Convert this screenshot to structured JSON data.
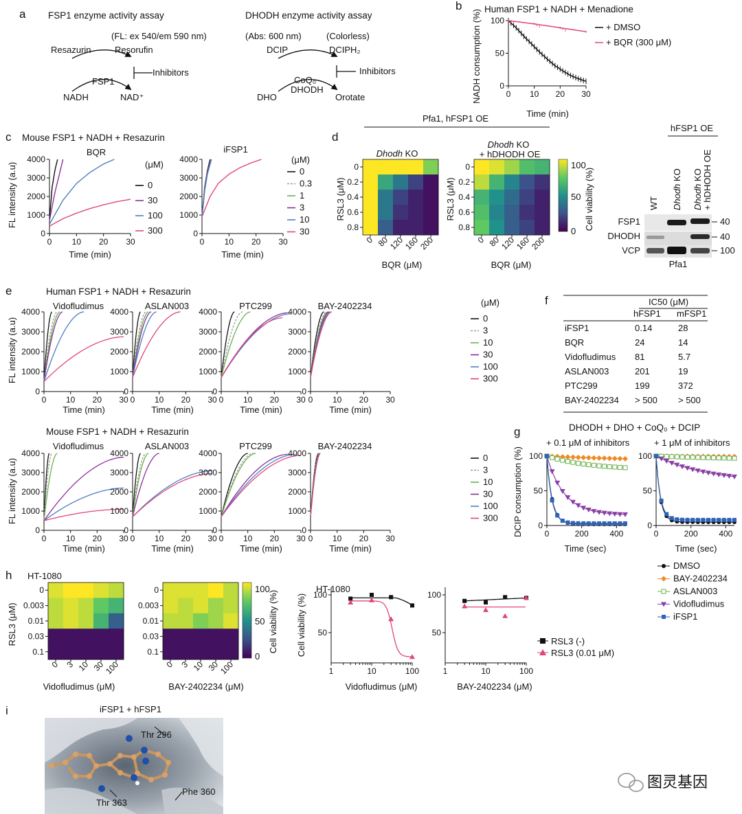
{
  "panels": {
    "a": {
      "letter": "a",
      "fsp1_title": "FSP1 enzyme activity assay",
      "fl": "(FL: ex 540/em 590 nm)",
      "resazurin": "Resazurin",
      "resorufin": "Resorufin",
      "fsp1": "FSP1",
      "inhibitors": "Inhibitors",
      "nadh": "NADH",
      "nad": "NAD⁺",
      "dhodh_title": "DHODH enzyme activity assay",
      "abs": "(Abs: 600 nm)",
      "colorless": "(Colorless)",
      "dcip": "DCIP",
      "dciph2": "DCIPH₂",
      "coq0": "CoQ₀",
      "dhodh": "DHODH",
      "dho": "DHO",
      "orotate": "Orotate"
    },
    "b": {
      "letter": "b",
      "title": "Human FSP1 + NADH + Menadione",
      "ylabel": "NADH consumption (%)",
      "xlabel": "Time (min)",
      "xticks": [
        "0",
        "10",
        "20",
        "30"
      ],
      "yticks": [
        "0",
        "50",
        "100"
      ],
      "legend": [
        "+ DMSO",
        "+ BQR (300 μM)"
      ]
    },
    "c": {
      "letter": "c",
      "title": "Mouse FSP1 + NADH + Resazurin",
      "sub1": "BQR",
      "sub2": "iFSP1",
      "ylabel": "FL intensity (a.u)",
      "xlabel": "Time (min)",
      "unit": "(μM)",
      "xticks": [
        "0",
        "10",
        "20",
        "30"
      ],
      "yticks": [
        "0",
        "1000",
        "2000",
        "3000",
        "4000"
      ],
      "legend1": [
        "0",
        "30",
        "100",
        "300"
      ],
      "legend2": [
        "0",
        "0.3",
        "1",
        "3",
        "10",
        "30"
      ]
    },
    "d": {
      "letter": "d",
      "header": "Pfa1, hFSP1 OE",
      "hm1": "KO",
      "hm1_italic": "Dhodh",
      "hm2_line1": "KO",
      "hm2_line2": "+ hDHODH OE",
      "hm2_italic": "Dhodh",
      "ylabel": "RSL3 (μM)",
      "xlabel": "BQR (μM)",
      "xticks": [
        "0",
        "80",
        "120",
        "160",
        "200"
      ],
      "yticks": [
        "0",
        "0.2",
        "0.4",
        "0.6",
        "0.8"
      ],
      "cbar_label": "Cell viability (%)",
      "cbar_ticks": [
        "100",
        "50",
        "0"
      ]
    },
    "wb": {
      "header": "hFSP1 OE",
      "lanes": [
        "WT",
        "KO",
        "KO",
        "+ hDHODH OE"
      ],
      "lane_italic": "Dhodh",
      "proteins": [
        "FSP1",
        "DHODH",
        "VCP"
      ],
      "markers": [
        "40",
        "40",
        "100"
      ],
      "cell": "Pfa1"
    },
    "e": {
      "letter": "e",
      "title_human": "Human FSP1 + NADH + Resazurin",
      "title_mouse": "Mouse FSP1 + NADH + Resazurin",
      "drugs": [
        "Vidofludimus",
        "ASLAN003",
        "PTC299",
        "BAY-2402234"
      ],
      "ylabel": "FL intensity (a.u)",
      "xlabel": "Time (min)",
      "unit": "(μM)",
      "xticks": [
        "0",
        "10",
        "20",
        "30"
      ],
      "yticks": [
        "0",
        "1000",
        "2000",
        "3000",
        "4000"
      ],
      "legend": [
        "0",
        "3",
        "10",
        "30",
        "100",
        "300"
      ]
    },
    "f": {
      "letter": "f",
      "header": "IC50 (μM)",
      "col1": "hFSP1",
      "col2": "mFSP1",
      "rows": [
        {
          "name": "iFSP1",
          "h": "0.14",
          "m": "28"
        },
        {
          "name": "BQR",
          "h": "24",
          "m": "14"
        },
        {
          "name": "Vidofludimus",
          "h": "81",
          "m": "5.7"
        },
        {
          "name": "ASLAN003",
          "h": "201",
          "m": "19"
        },
        {
          "name": "PTC299",
          "h": "199",
          "m": "372"
        },
        {
          "name": "BAY-2402234",
          "h": "> 500",
          "m": "> 500"
        }
      ]
    },
    "g": {
      "letter": "g",
      "title": "DHODH + DHO + CoQ₀ + DCIP",
      "sub1": "+ 0.1 μM of inhibitors",
      "sub2": "+ 1 μM of inhibitors",
      "ylabel": "DCIP consumption (%)",
      "xlabel": "Time (sec)",
      "xticks": [
        "0",
        "200",
        "400"
      ],
      "yticks": [
        "0",
        "50",
        "100"
      ],
      "legend": [
        "DMSO",
        "BAY-2402234",
        "ASLAN003",
        "Vidofludimus",
        "iFSP1"
      ]
    },
    "h": {
      "letter": "h",
      "cell": "HT-1080",
      "ylabel": "RSL3 (μM)",
      "yticks": [
        "0",
        "0.003",
        "0.01",
        "0.03",
        "0.1"
      ],
      "xticks": [
        "0",
        "3",
        "10",
        "30",
        "100"
      ],
      "xlabel1": "Vidofludimus (μM)",
      "xlabel2": "BAY-2402234 (μM)",
      "cbar_label": "Cell viability (%)",
      "cbar_ticks": [
        "100",
        "50",
        "0"
      ],
      "curve_ylabel": "Cell viability (%)",
      "curve_yticks": [
        "50",
        "100"
      ],
      "curve_xticks": [
        "1",
        "10",
        "100"
      ],
      "legend": [
        "RSL3 (-)",
        "RSL3 (0.01 μM)"
      ]
    },
    "i": {
      "letter": "i",
      "title": "iFSP1 + hFSP1",
      "labels": [
        "Thr 296",
        "Thr 363",
        "Phe 360"
      ]
    },
    "watermark": "图灵基因"
  },
  "chart_data": [
    {
      "id": "b",
      "type": "line",
      "title": "Human FSP1 + NADH + Menadione",
      "xlabel": "Time (min)",
      "ylabel": "NADH consumption (%)",
      "xlim": [
        0,
        30
      ],
      "ylim": [
        0,
        100
      ],
      "series": [
        {
          "name": "+ DMSO",
          "color": "#111111",
          "x": [
            0,
            3,
            6,
            9,
            12,
            15,
            18,
            21,
            24,
            27,
            30
          ],
          "values": [
            100,
            89,
            76,
            64,
            52,
            41,
            31,
            23,
            16,
            11,
            7
          ]
        },
        {
          "name": "+ BQR (300 μM)",
          "color": "#e0457b",
          "x": [
            0,
            10,
            20,
            30
          ],
          "values": [
            100,
            95,
            89,
            83
          ]
        }
      ]
    },
    {
      "id": "c1",
      "type": "line",
      "title": "BQR",
      "xlim": [
        0,
        30
      ],
      "ylim": [
        0,
        4000
      ],
      "series": [
        {
          "name": "0",
          "color": "#111111",
          "x": [
            0,
            1,
            2,
            3
          ],
          "values": [
            800,
            2500,
            3400,
            4000
          ]
        },
        {
          "name": "30",
          "color": "#8a2f9a",
          "x": [
            0,
            2,
            4,
            5
          ],
          "values": [
            700,
            2200,
            3400,
            4000
          ]
        },
        {
          "name": "100",
          "color": "#4a7fc0",
          "x": [
            0,
            5,
            10,
            15,
            20,
            24
          ],
          "values": [
            500,
            1800,
            2700,
            3300,
            3750,
            4000
          ]
        },
        {
          "name": "300",
          "color": "#e0457b",
          "x": [
            0,
            5,
            10,
            15,
            20,
            25,
            30
          ],
          "values": [
            400,
            800,
            1100,
            1350,
            1550,
            1720,
            1850
          ]
        }
      ]
    },
    {
      "id": "c2",
      "type": "line",
      "title": "iFSP1",
      "xlim": [
        0,
        30
      ],
      "ylim": [
        0,
        4000
      ],
      "series": [
        {
          "name": "0",
          "color": "#111111",
          "x": [
            0,
            1,
            2,
            3
          ],
          "values": [
            900,
            2500,
            3400,
            4000
          ]
        },
        {
          "name": "0.3",
          "color": "#999999",
          "x": [
            0,
            1,
            2,
            3.2
          ],
          "values": [
            900,
            2400,
            3300,
            4000
          ]
        },
        {
          "name": "1",
          "color": "#6ab04c",
          "x": [
            0,
            1,
            2,
            3.3
          ],
          "values": [
            900,
            2400,
            3300,
            4000
          ]
        },
        {
          "name": "3",
          "color": "#8a2f9a",
          "x": [
            0,
            1,
            2,
            3.4
          ],
          "values": [
            900,
            2400,
            3300,
            4000
          ]
        },
        {
          "name": "10",
          "color": "#4a7fc0",
          "x": [
            0,
            1,
            2,
            3.5
          ],
          "values": [
            900,
            2300,
            3200,
            4000
          ]
        },
        {
          "name": "30",
          "color": "#e0457b",
          "x": [
            0,
            3,
            6,
            10,
            14,
            18,
            22
          ],
          "values": [
            900,
            2000,
            2700,
            3200,
            3550,
            3800,
            4000
          ]
        }
      ]
    },
    {
      "id": "d1",
      "type": "heatmap",
      "title": "Dhodh KO",
      "x": [
        0,
        80,
        120,
        160,
        200
      ],
      "y": [
        0,
        0.2,
        0.4,
        0.6,
        0.8
      ],
      "values": [
        [
          100,
          100,
          100,
          100,
          80
        ],
        [
          100,
          60,
          40,
          20,
          5
        ],
        [
          100,
          40,
          20,
          10,
          5
        ],
        [
          100,
          40,
          15,
          10,
          5
        ],
        [
          100,
          30,
          10,
          10,
          5
        ]
      ]
    },
    {
      "id": "d2",
      "type": "heatmap",
      "title": "Dhodh KO + hDHODH OE",
      "x": [
        0,
        80,
        120,
        160,
        200
      ],
      "y": [
        0,
        0.2,
        0.4,
        0.6,
        0.8
      ],
      "values": [
        [
          100,
          95,
          85,
          70,
          65
        ],
        [
          90,
          65,
          45,
          25,
          15
        ],
        [
          65,
          50,
          35,
          20,
          10
        ],
        [
          70,
          45,
          30,
          15,
          10
        ],
        [
          75,
          50,
          30,
          20,
          10
        ]
      ]
    },
    {
      "id": "f",
      "type": "table",
      "title": "IC50 (μM)",
      "columns": [
        "",
        "hFSP1",
        "mFSP1"
      ],
      "rows": [
        [
          "iFSP1",
          "0.14",
          "28"
        ],
        [
          "BQR",
          "24",
          "14"
        ],
        [
          "Vidofludimus",
          "81",
          "5.7"
        ],
        [
          "ASLAN003",
          "201",
          "19"
        ],
        [
          "PTC299",
          "199",
          "372"
        ],
        [
          "BAY-2402234",
          "> 500",
          "> 500"
        ]
      ]
    },
    {
      "id": "h1",
      "type": "heatmap",
      "title": "Vidofludimus",
      "x": [
        0,
        3,
        10,
        30,
        100
      ],
      "y": [
        0,
        0.003,
        0.01,
        0.03,
        0.1
      ],
      "values": [
        [
          95,
          100,
          100,
          95,
          90
        ],
        [
          90,
          95,
          90,
          75,
          65
        ],
        [
          90,
          95,
          90,
          65,
          30
        ],
        [
          5,
          5,
          5,
          5,
          5
        ],
        [
          5,
          5,
          5,
          5,
          5
        ]
      ]
    },
    {
      "id": "h2",
      "type": "heatmap",
      "title": "BAY-2402234",
      "x": [
        0,
        3,
        10,
        30,
        100
      ],
      "y": [
        0,
        0.003,
        0.01,
        0.03,
        0.1
      ],
      "values": [
        [
          95,
          95,
          95,
          100,
          90
        ],
        [
          95,
          90,
          95,
          85,
          90
        ],
        [
          90,
          90,
          80,
          85,
          95
        ],
        [
          5,
          5,
          5,
          5,
          5
        ],
        [
          5,
          5,
          5,
          5,
          5
        ]
      ]
    }
  ]
}
